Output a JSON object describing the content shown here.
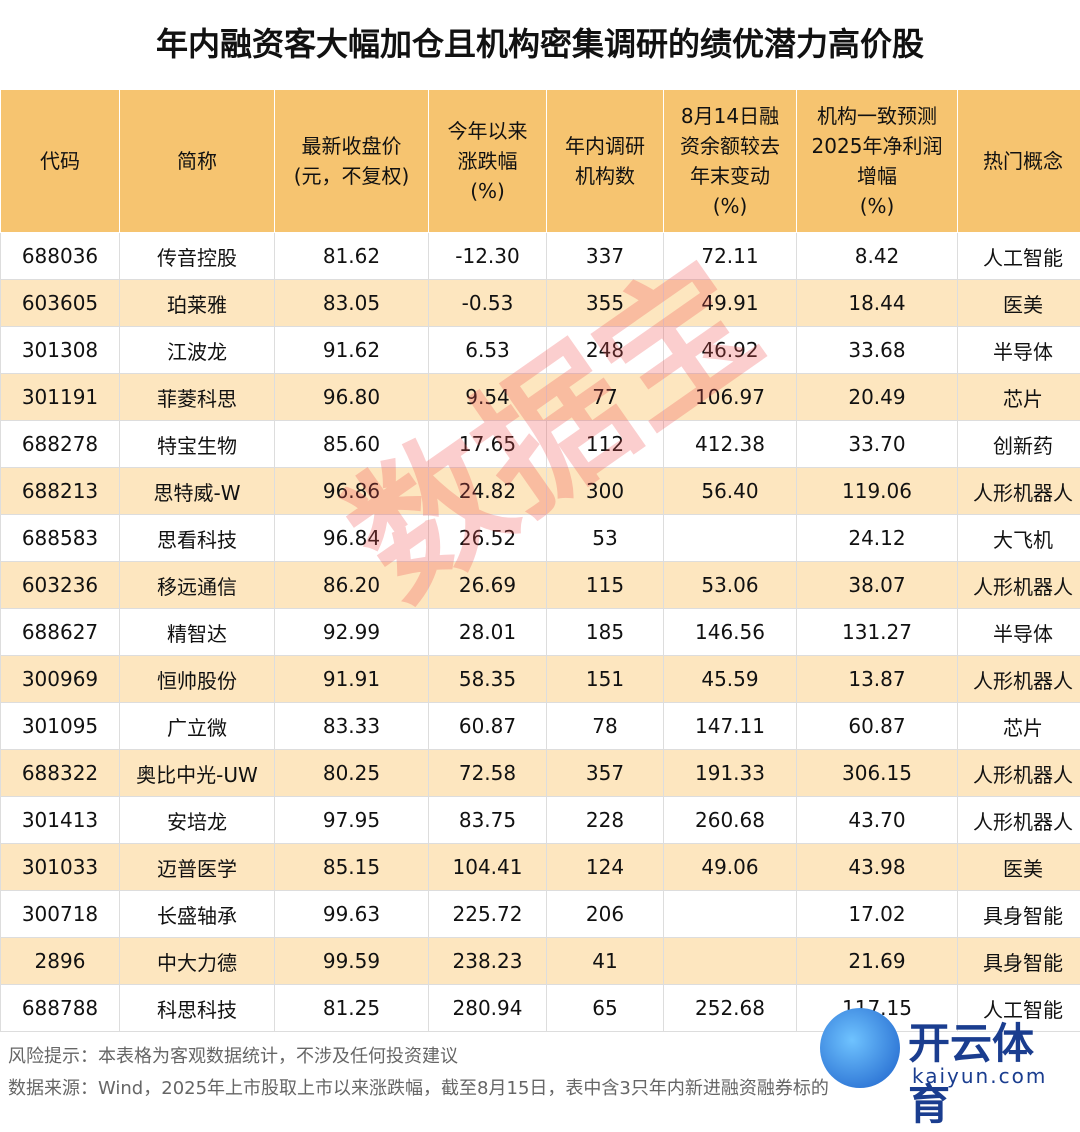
{
  "header": {
    "title": "年内融资客大幅加仓且机构密集调研的绩优潜力高价股"
  },
  "table": {
    "columns": [
      "代码",
      "简称",
      "最新收盘价\n(元，不复权)",
      "今年以来\n涨跌幅\n(%)",
      "年内调研\n机构数",
      "8月14日融\n资余额较去\n年末变动\n(%)",
      "机构一致预测\n2025年净利润\n增幅\n(%)",
      "热门概念"
    ],
    "rows": [
      [
        "688036",
        "传音控股",
        "81.62",
        "-12.30",
        "337",
        "72.11",
        "8.42",
        "人工智能"
      ],
      [
        "603605",
        "珀莱雅",
        "83.05",
        "-0.53",
        "355",
        "49.91",
        "18.44",
        "医美"
      ],
      [
        "301308",
        "江波龙",
        "91.62",
        "6.53",
        "248",
        "46.92",
        "33.68",
        "半导体"
      ],
      [
        "301191",
        "菲菱科思",
        "96.80",
        "9.54",
        "77",
        "106.97",
        "20.49",
        "芯片"
      ],
      [
        "688278",
        "特宝生物",
        "85.60",
        "17.65",
        "112",
        "412.38",
        "33.70",
        "创新药"
      ],
      [
        "688213",
        "思特威-W",
        "96.86",
        "24.82",
        "300",
        "56.40",
        "119.06",
        "人形机器人"
      ],
      [
        "688583",
        "思看科技",
        "96.84",
        "26.52",
        "53",
        null,
        "24.12",
        "大飞机"
      ],
      [
        "603236",
        "移远通信",
        "86.20",
        "26.69",
        "115",
        "53.06",
        "38.07",
        "人形机器人"
      ],
      [
        "688627",
        "精智达",
        "92.99",
        "28.01",
        "185",
        "146.56",
        "131.27",
        "半导体"
      ],
      [
        "300969",
        "恒帅股份",
        "91.91",
        "58.35",
        "151",
        "45.59",
        "13.87",
        "人形机器人"
      ],
      [
        "301095",
        "广立微",
        "83.33",
        "60.87",
        "78",
        "147.11",
        "60.87",
        "芯片"
      ],
      [
        "688322",
        "奥比中光-UW",
        "80.25",
        "72.58",
        "357",
        "191.33",
        "306.15",
        "人形机器人"
      ],
      [
        "301413",
        "安培龙",
        "97.95",
        "83.75",
        "228",
        "260.68",
        "43.70",
        "人形机器人"
      ],
      [
        "301033",
        "迈普医学",
        "85.15",
        "104.41",
        "124",
        "49.06",
        "43.98",
        "医美"
      ],
      [
        "300718",
        "长盛轴承",
        "99.63",
        "225.72",
        "206",
        null,
        "17.02",
        "具身智能"
      ],
      [
        "2896",
        "中大力德",
        "99.59",
        "238.23",
        "41",
        null,
        "21.69",
        "具身智能"
      ],
      [
        "688788",
        "科思科技",
        "81.25",
        "280.94",
        "65",
        "252.68",
        "117.15",
        "人工智能"
      ]
    ]
  },
  "footer": {
    "notes": [
      "风险提示：本表格为客观数据统计，不涉及任何投资建议",
      "数据来源：Wind，2025年上市股取上市以来涨跌幅，截至8月15日，表中含3只年内新进融资融券标的"
    ]
  },
  "watermark": "数据宝",
  "logo": {
    "name": "开云体育",
    "url": "kaiyun.com"
  }
}
